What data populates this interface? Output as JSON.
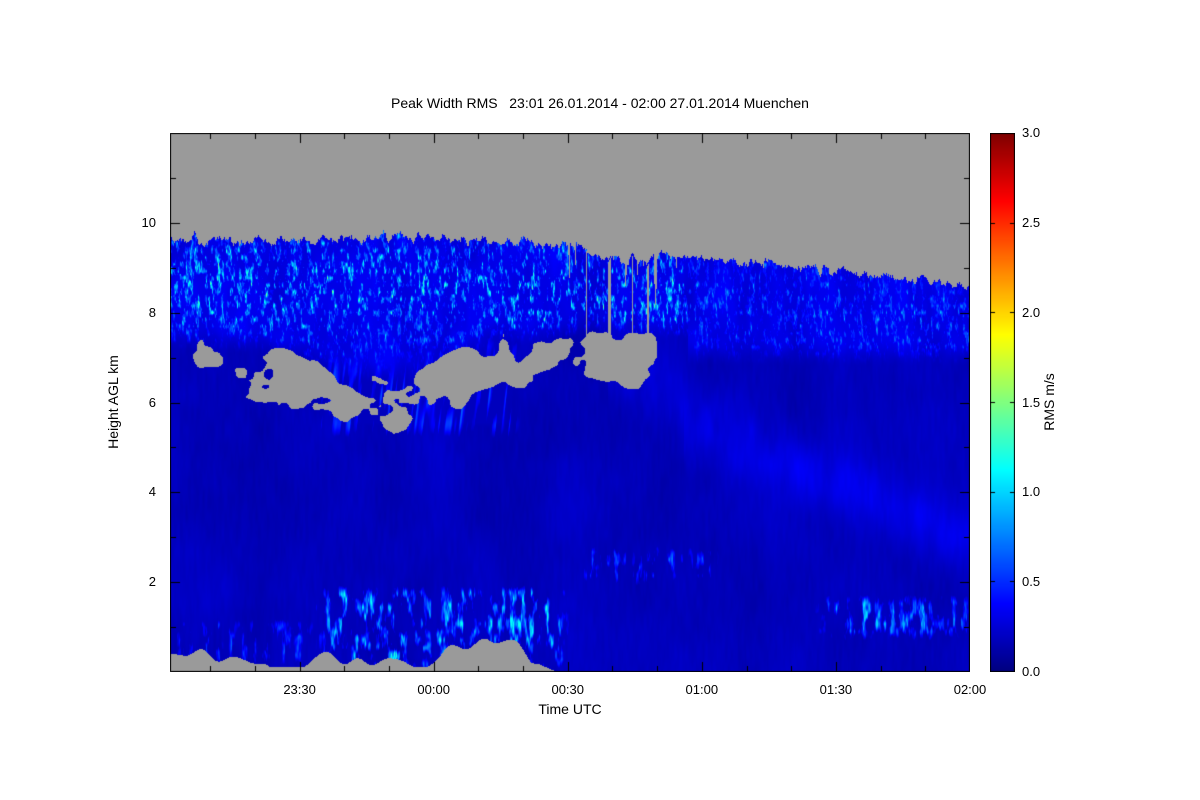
{
  "title": "Peak Width RMS   23:01 26.01.2014 - 02:00 27.01.2014 Muenchen",
  "chart_data": {
    "type": "heatmap",
    "title": "Peak Width RMS   23:01 26.01.2014 - 02:00 27.01.2014 Muenchen",
    "station": "Muenchen",
    "time_start": "23:01 26.01.2014",
    "time_end": "02:00 27.01.2014",
    "xlabel": "Time UTC",
    "ylabel": "Height AGL km",
    "x_axis": {
      "span_minutes": 179,
      "ticks": [
        {
          "label": "23:30",
          "minute": 29
        },
        {
          "label": "00:00",
          "minute": 59
        },
        {
          "label": "00:30",
          "minute": 89
        },
        {
          "label": "01:00",
          "minute": 119
        },
        {
          "label": "01:30",
          "minute": 149
        },
        {
          "label": "02:00",
          "minute": 179
        }
      ],
      "minor_tick_minutes": 10
    },
    "y_axis": {
      "range_km": [
        0,
        12
      ],
      "ticks": [
        {
          "label": "2",
          "km": 2
        },
        {
          "label": "4",
          "km": 4
        },
        {
          "label": "6",
          "km": 6
        },
        {
          "label": "8",
          "km": 8
        },
        {
          "label": "10",
          "km": 10
        }
      ],
      "minor_tick_km": 1
    },
    "colorbar": {
      "label": "RMS m/s",
      "min": 0,
      "max": 3,
      "ticks": [
        "0.0",
        "0.5",
        "1.0",
        "1.5",
        "2.0",
        "2.5",
        "3.0"
      ],
      "colormap": "jet"
    },
    "no_data_color": "#9a9a9a",
    "features": {
      "cloud_top_profile_km": [
        [
          0,
          9.6
        ],
        [
          29,
          9.62
        ],
        [
          58,
          9.68
        ],
        [
          80,
          9.55
        ],
        [
          90,
          9.5
        ],
        [
          101,
          9.1
        ],
        [
          108,
          9.25
        ],
        [
          119,
          9.2
        ],
        [
          132,
          9.1
        ],
        [
          148,
          8.95
        ],
        [
          163,
          8.8
        ],
        [
          179,
          8.55
        ]
      ],
      "cloud_layer": {
        "height_km": [
          6.8,
          9.7
        ],
        "rms_range_ms": [
          0.2,
          1.3
        ],
        "description": "cloud deck with bright cyan turbulent filaments, strongest 23:10-01:00"
      },
      "gap_band": {
        "center_profile_km": [
          [
            0,
            6.8
          ],
          [
            20,
            6.7
          ],
          [
            40,
            6.1
          ],
          [
            50,
            6.0
          ],
          [
            60,
            6.3
          ],
          [
            72,
            6.9
          ],
          [
            85,
            6.9
          ],
          [
            95,
            7.2
          ],
          [
            105,
            7.0
          ],
          [
            115,
            7.0
          ]
        ],
        "minutes": [
          2,
          116
        ],
        "description": "gray no-data holes between cloud base and lower aerosol layer"
      },
      "clear_air": {
        "height_km": [
          0,
          6.5
        ],
        "rms_range_ms": [
          0.05,
          0.3
        ]
      },
      "boundary_layer_patches": [
        {
          "minutes": [
            0,
            32
          ],
          "height_km": [
            0.2,
            1.3
          ],
          "rms_range_ms": [
            0.2,
            0.7
          ]
        },
        {
          "minutes": [
            34,
            88
          ],
          "height_km": [
            0.1,
            2.0
          ],
          "rms_range_ms": [
            0.4,
            1.3
          ]
        },
        {
          "minutes": [
            92,
            122
          ],
          "height_km": [
            2.0,
            2.9
          ],
          "rms_range_ms": [
            0.3,
            0.8
          ]
        },
        {
          "minutes": [
            146,
            179
          ],
          "height_km": [
            0.8,
            1.8
          ],
          "rms_range_ms": [
            0.4,
            1.1
          ]
        }
      ],
      "surface_no_data": {
        "minutes": [
          0,
          87
        ],
        "max_height_km": 0.55
      }
    }
  }
}
